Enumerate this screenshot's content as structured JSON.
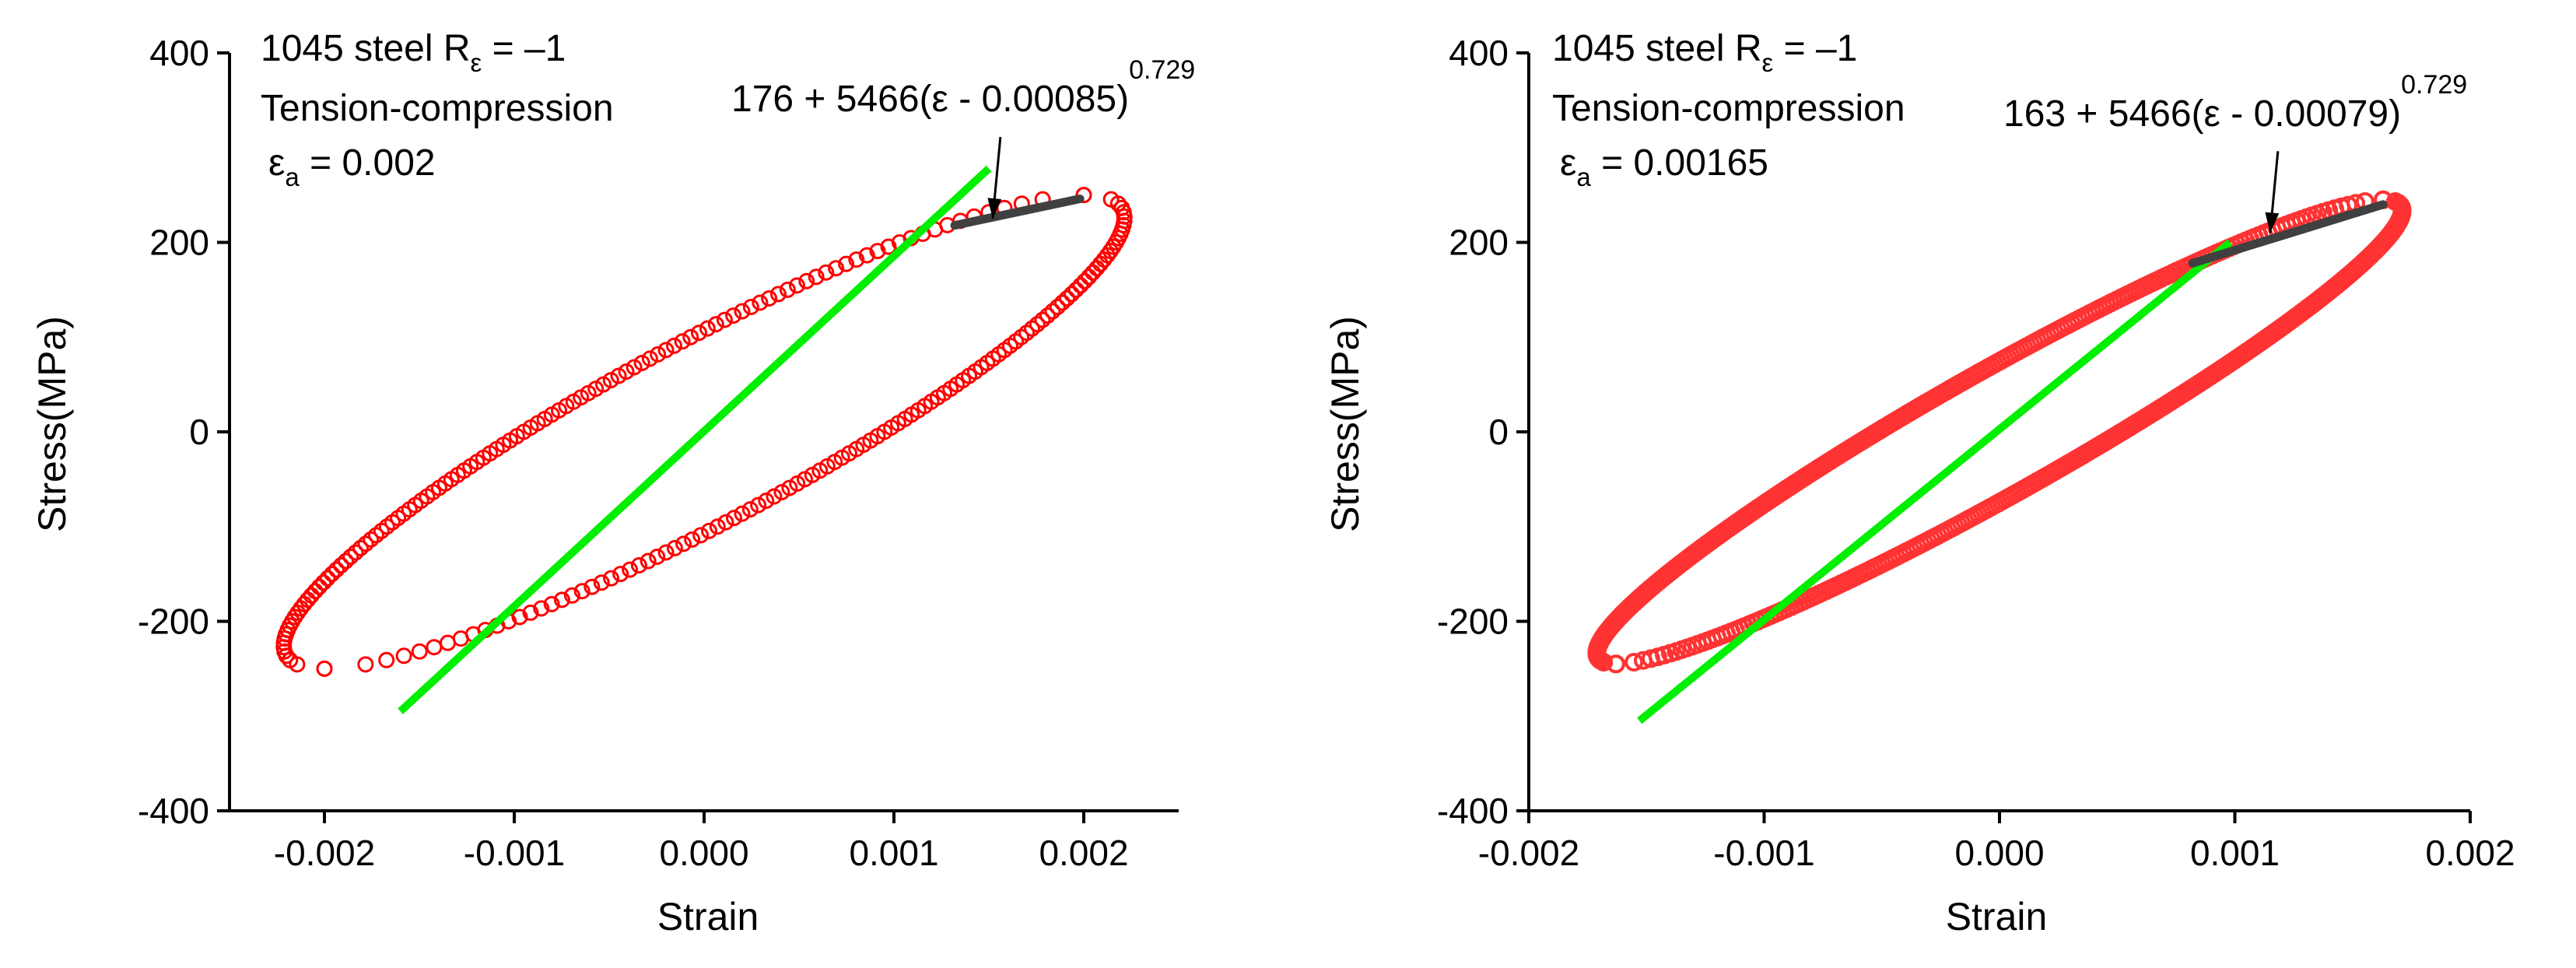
{
  "chart_data": [
    {
      "type": "line",
      "title": "",
      "xlabel": "Strain",
      "ylabel": "Stress(MPa)",
      "xlim": [
        -0.0025,
        0.0025
      ],
      "ylim": [
        -400,
        400
      ],
      "x_ticks": [
        -0.002,
        -0.001,
        0.0,
        0.001,
        0.002
      ],
      "x_tick_labels": [
        "-0.002",
        "-0.001",
        "0.000",
        "0.001",
        "0.002"
      ],
      "y_ticks": [
        -400,
        -200,
        0,
        200,
        400
      ],
      "y_tick_labels": [
        "-400",
        "-200",
        "0",
        "200",
        "400"
      ],
      "annotation": {
        "line1_main": "1045 steel R",
        "line1_sub": "ε",
        "line1_tail": " = –1",
        "line2": "Tension-compression",
        "line3_main": "ε",
        "line3_sub": "a",
        "line3_tail": " = 0.002"
      },
      "formula": {
        "main": "176 + 5466(ε - 0.00085)",
        "exponent": "0.729",
        "arrow_to": [
          0.00152,
          225
        ]
      },
      "series": [
        {
          "name": "Hysteresis loop (measured)",
          "style": "open-circles",
          "color": "#ff0000",
          "amplitude": 0.002,
          "peak_stress": 250,
          "loop_half_width": 0.00095,
          "points_per_branch": 110
        },
        {
          "name": "Elastic line",
          "style": "line",
          "color": "#00ee00",
          "x": [
            -0.0016,
            0.0015
          ],
          "y": [
            -295,
            278
          ]
        },
        {
          "name": "Power-law fit",
          "style": "line",
          "color": "#404040",
          "x": [
            0.00132,
            0.00198
          ],
          "y": [
            218,
            246
          ]
        }
      ]
    },
    {
      "type": "line",
      "title": "",
      "xlabel": "Strain",
      "ylabel": "Stress(MPa)",
      "xlim": [
        -0.002,
        0.002
      ],
      "ylim": [
        -400,
        400
      ],
      "x_ticks": [
        -0.002,
        -0.001,
        0.0,
        0.001,
        0.002
      ],
      "x_tick_labels": [
        "-0.002",
        "-0.001",
        "0.000",
        "0.001",
        "0.002"
      ],
      "y_ticks": [
        -400,
        -200,
        0,
        200,
        400
      ],
      "y_tick_labels": [
        "-400",
        "-200",
        "0",
        "200",
        "400"
      ],
      "annotation": {
        "line1_main": "1045 steel R",
        "line1_sub": "ε",
        "line1_tail": " = –1",
        "line2": "Tension-compression",
        "line3_main": "ε",
        "line3_sub": "a",
        "line3_tail": " = 0.00165"
      },
      "formula": {
        "main": "163 + 5466(ε - 0.00079)",
        "exponent": "0.729",
        "arrow_to": [
          0.00115,
          210
        ]
      },
      "series": [
        {
          "name": "Hysteresis loop (measured)",
          "style": "open-circles",
          "color": "#ff3333",
          "amplitude": 0.00163,
          "peak_stress": 245,
          "loop_half_width": 0.00052,
          "points_per_branch": 260
        },
        {
          "name": "Elastic line",
          "style": "line",
          "color": "#00ee00",
          "x": [
            -0.00153,
            0.00098
          ],
          "y": [
            -305,
            200
          ]
        },
        {
          "name": "Power-law fit",
          "style": "line",
          "color": "#404040",
          "x": [
            0.00082,
            0.00163
          ],
          "y": [
            178,
            240
          ]
        }
      ]
    }
  ]
}
